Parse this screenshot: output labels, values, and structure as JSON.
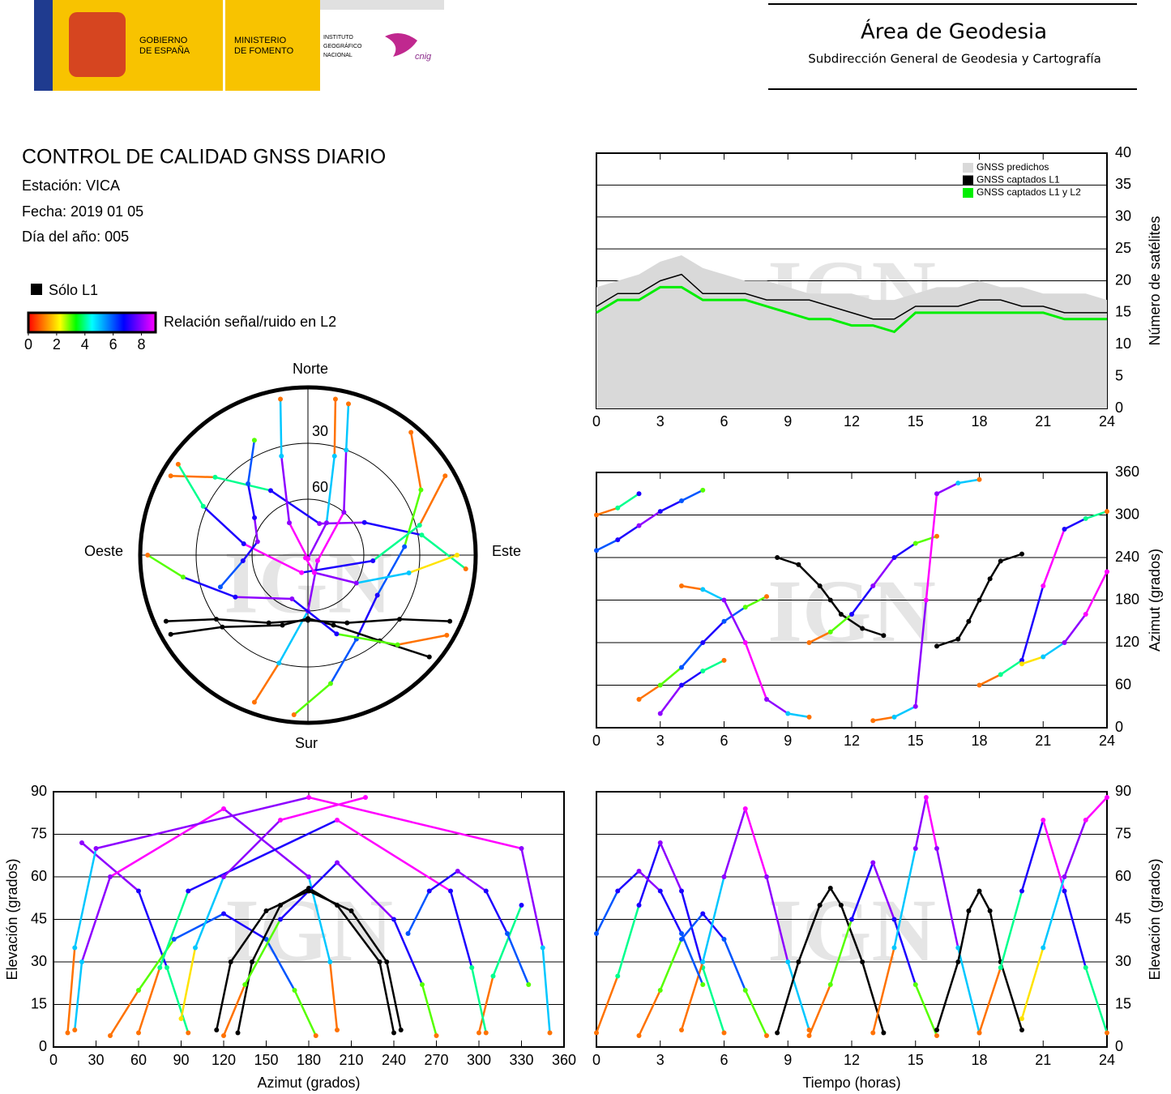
{
  "header": {
    "government": [
      "GOBIERNO",
      "DE ESPAÑA"
    ],
    "ministry": [
      "MINISTERIO",
      "DE FOMENTO"
    ],
    "institute": [
      "INSTITUTO",
      "GEOGRÁFICO",
      "NACIONAL"
    ],
    "cnig": "cnig",
    "area": "Área de Geodesia",
    "subdirection": "Subdirección General de Geodesia y Cartografía"
  },
  "report": {
    "title": "CONTROL DE CALIDAD GNSS DIARIO",
    "station": "Estación: VICA",
    "date": "Fecha: 2019 01 05",
    "doy": "Día del año: 005"
  },
  "watermark": "IGN",
  "chart_data": [
    {
      "type": "line",
      "x": [
        0,
        1,
        2,
        3,
        4,
        5,
        6,
        7,
        8,
        9,
        10,
        11,
        12,
        13,
        14,
        15,
        16,
        17,
        18,
        19,
        20,
        21,
        22,
        23,
        24
      ],
      "xlim": [
        0,
        24
      ],
      "xticks": [
        0,
        3,
        6,
        9,
        12,
        15,
        18,
        21,
        24
      ],
      "ylim": [
        0,
        40
      ],
      "yticks": [
        0,
        5,
        10,
        15,
        20,
        25,
        30,
        35,
        40
      ],
      "ylabel": "Número de satélites",
      "grid": true,
      "legend": "top-right",
      "series": [
        {
          "name": "GNSS predichos",
          "color": "#d9d9d9",
          "fill": true,
          "values": [
            19,
            20,
            21,
            23,
            24,
            22,
            21,
            20,
            20,
            19,
            18,
            18,
            18,
            17,
            17,
            18,
            19,
            19,
            20,
            19,
            19,
            18,
            18,
            18,
            17
          ]
        },
        {
          "name": "GNSS captados L1",
          "color": "#000000",
          "values": [
            16,
            18,
            18,
            20,
            21,
            18,
            18,
            18,
            17,
            17,
            17,
            16,
            15,
            14,
            14,
            16,
            16,
            16,
            17,
            17,
            16,
            16,
            15,
            15,
            15
          ]
        },
        {
          "name": "GNSS captados L1 y L2",
          "color": "#00ee00",
          "values": [
            15,
            17,
            17,
            19,
            19,
            17,
            17,
            17,
            16,
            15,
            14,
            14,
            13,
            13,
            12,
            15,
            15,
            15,
            15,
            15,
            15,
            15,
            14,
            14,
            14
          ]
        }
      ]
    },
    {
      "type": "gnss-tracks",
      "l1_only_label": "Sólo L1",
      "l1_only_color": "#000000",
      "colorbar": {
        "label": "Relación señal/ruido en L2",
        "lim": [
          0,
          9
        ],
        "ticks": [
          0,
          2,
          4,
          6,
          8
        ],
        "colors": [
          "#ff0000",
          "#ff8000",
          "#ffff00",
          "#00ff00",
          "#00ffff",
          "#0080ff",
          "#0000ff",
          "#8000ff",
          "#ff00ff"
        ]
      },
      "skyplot": {
        "north": "Norte",
        "south": "Sur",
        "east": "Este",
        "west": "Oeste",
        "rlim": [
          90,
          0
        ],
        "rings": [
          30,
          60
        ]
      },
      "panels": {
        "azimuth_time": {
          "xlim": [
            0,
            24
          ],
          "xticks": [
            0,
            3,
            6,
            9,
            12,
            15,
            18,
            21,
            24
          ],
          "ylim": [
            0,
            360
          ],
          "yticks": [
            0,
            60,
            120,
            180,
            240,
            300,
            360
          ],
          "ylabel": "Azimut (grados)"
        },
        "elevation_azimuth": {
          "xlim": [
            0,
            360
          ],
          "xticks": [
            0,
            30,
            60,
            90,
            120,
            150,
            180,
            210,
            240,
            270,
            300,
            330,
            360
          ],
          "ylim": [
            0,
            90
          ],
          "yticks": [
            0,
            15,
            30,
            45,
            60,
            75,
            90
          ],
          "xlabel": "Azimut (grados)",
          "ylabel": "Elevación (grados)"
        },
        "elevation_time": {
          "xlim": [
            0,
            24
          ],
          "xticks": [
            0,
            3,
            6,
            9,
            12,
            15,
            18,
            21,
            24
          ],
          "ylim": [
            0,
            90
          ],
          "yticks": [
            0,
            15,
            30,
            45,
            60,
            75,
            90
          ],
          "xlabel": "Tiempo (horas)",
          "ylabel": "Elevación (grados)"
        }
      },
      "passes": [
        {
          "t": [
            0,
            1,
            2,
            3,
            4,
            5,
            6
          ],
          "az": [
            300,
            310,
            330,
            20,
            60,
            80,
            95
          ],
          "el": [
            5,
            25,
            50,
            72,
            55,
            28,
            5
          ],
          "snr": [
            1,
            4,
            7,
            8,
            7,
            4,
            1
          ]
        },
        {
          "t": [
            2,
            3,
            4,
            5,
            6,
            7,
            8
          ],
          "az": [
            40,
            60,
            85,
            120,
            150,
            170,
            185
          ],
          "el": [
            4,
            20,
            38,
            47,
            38,
            20,
            4
          ],
          "snr": [
            1,
            3,
            6,
            7,
            6,
            3,
            1
          ]
        },
        {
          "t": [
            4,
            5,
            6,
            7,
            8,
            9,
            10
          ],
          "az": [
            200,
            195,
            180,
            120,
            40,
            20,
            15
          ],
          "el": [
            6,
            30,
            60,
            84,
            60,
            30,
            6
          ],
          "snr": [
            1,
            5,
            8,
            9,
            8,
            5,
            1
          ]
        },
        {
          "t": [
            8.5,
            9.5,
            10.5,
            11,
            11.5,
            12.5,
            13.5
          ],
          "az": [
            240,
            230,
            200,
            180,
            160,
            140,
            130
          ],
          "el": [
            5,
            30,
            50,
            56,
            50,
            30,
            5
          ],
          "snr": [
            null,
            null,
            null,
            null,
            null,
            null,
            null
          ]
        },
        {
          "t": [
            10,
            11,
            12,
            13,
            14,
            15,
            16
          ],
          "az": [
            120,
            135,
            160,
            200,
            240,
            260,
            270
          ],
          "el": [
            4,
            22,
            45,
            65,
            45,
            22,
            4
          ],
          "snr": [
            1,
            3,
            7,
            8,
            7,
            3,
            1
          ]
        },
        {
          "t": [
            13,
            14,
            15,
            15.5,
            16,
            17,
            18
          ],
          "az": [
            10,
            15,
            30,
            180,
            330,
            345,
            350
          ],
          "el": [
            5,
            35,
            70,
            88,
            70,
            35,
            5
          ],
          "snr": [
            1,
            5,
            8,
            9,
            8,
            5,
            1
          ]
        },
        {
          "t": [
            16,
            17,
            17.5,
            18,
            18.5,
            19,
            20
          ],
          "az": [
            115,
            125,
            150,
            180,
            210,
            235,
            245
          ],
          "el": [
            6,
            30,
            48,
            55,
            48,
            30,
            6
          ],
          "snr": [
            null,
            null,
            null,
            null,
            null,
            null,
            null
          ]
        },
        {
          "t": [
            18,
            19,
            20,
            21,
            22,
            23,
            24
          ],
          "az": [
            60,
            75,
            95,
            200,
            280,
            295,
            305
          ],
          "el": [
            5,
            28,
            55,
            80,
            55,
            28,
            5
          ],
          "snr": [
            1,
            4,
            7,
            9,
            7,
            4,
            1
          ]
        },
        {
          "t": [
            0,
            1,
            2,
            3,
            4,
            5
          ],
          "az": [
            250,
            265,
            285,
            305,
            320,
            335
          ],
          "el": [
            40,
            55,
            62,
            55,
            40,
            22
          ],
          "snr": [
            6,
            7,
            8,
            7,
            6,
            3
          ]
        },
        {
          "t": [
            20,
            21,
            22,
            23,
            24
          ],
          "az": [
            90,
            100,
            120,
            160,
            220
          ],
          "el": [
            10,
            35,
            60,
            80,
            88
          ],
          "snr": [
            2,
            5,
            8,
            9,
            9
          ]
        }
      ]
    }
  ]
}
